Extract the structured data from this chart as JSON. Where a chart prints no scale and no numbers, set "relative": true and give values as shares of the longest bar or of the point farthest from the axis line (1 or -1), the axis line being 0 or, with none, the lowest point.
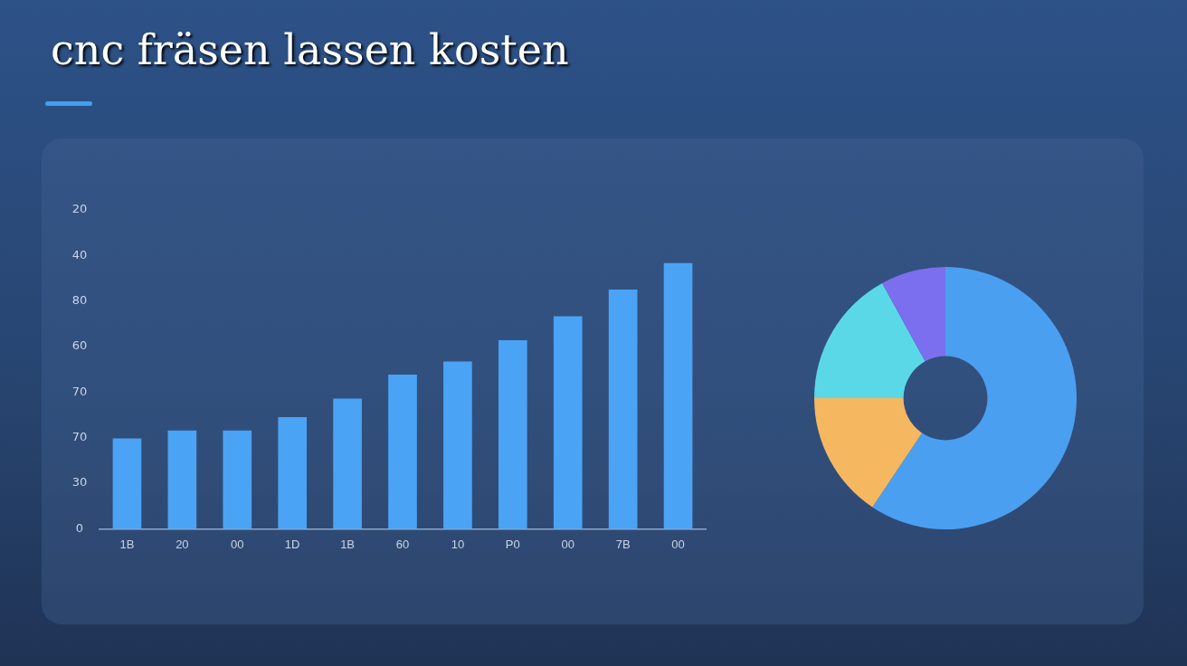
{
  "chart_data": [
    {
      "type": "bar",
      "title": "cnc fräsen lassen kosten",
      "categories": [
        "1B",
        "20",
        "00",
        "1D",
        "1B",
        "60",
        "10",
        "P0",
        "00",
        "7B",
        "00"
      ],
      "values": [
        0.34,
        0.37,
        0.37,
        0.42,
        0.49,
        0.58,
        0.63,
        0.71,
        0.8,
        0.9,
        1
      ],
      "color": "#4aa3f5",
      "relative": true,
      "annotations": [
        "20",
        "40",
        "80",
        "60",
        "70",
        "70",
        "30",
        "0"
      ],
      "legend": false
    },
    {
      "type": "donut",
      "categories": [
        null,
        null,
        null,
        null
      ],
      "values": [
        59.4,
        15.6,
        17,
        8
      ],
      "colors": [
        "#4a9ff0",
        "#f5b860",
        "#5ad8e8",
        "#7b6ff0"
      ],
      "legend": false
    }
  ]
}
